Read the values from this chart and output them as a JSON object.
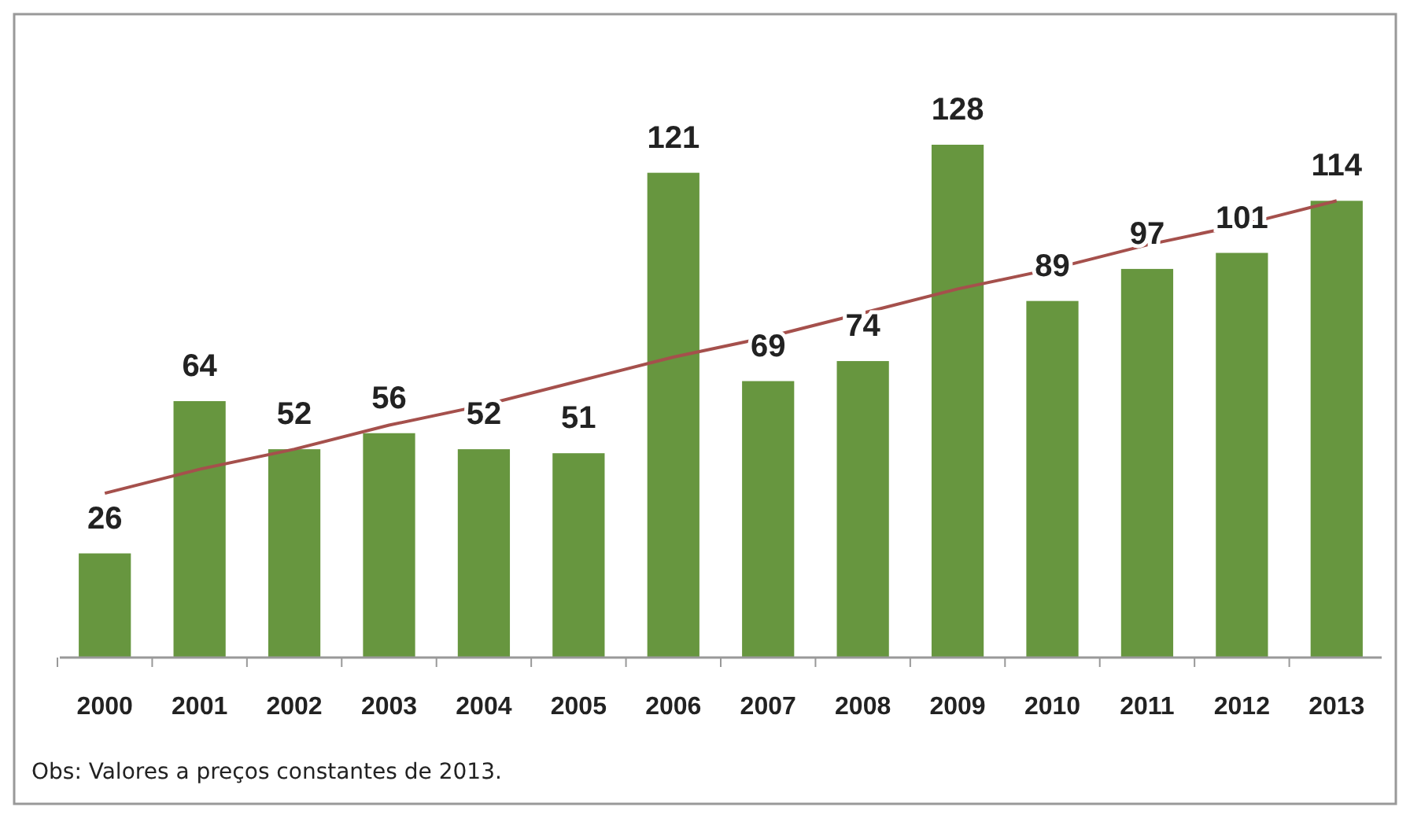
{
  "chart_data": {
    "type": "bar",
    "categories": [
      "2000",
      "2001",
      "2002",
      "2003",
      "2004",
      "2005",
      "2006",
      "2007",
      "2008",
      "2009",
      "2010",
      "2011",
      "2012",
      "2013"
    ],
    "series": [
      {
        "color": "#67963f",
        "values": [
          26,
          64,
          52,
          56,
          52,
          51,
          121,
          69,
          74,
          128,
          89,
          97,
          101,
          114
        ]
      },
      {
        "type": "line",
        "color": "#a5504c",
        "values": [
          41,
          47,
          52,
          58,
          63,
          69,
          75,
          80,
          86,
          92,
          97,
          103,
          108,
          114
        ],
        "value_labels": [
          null,
          null,
          null,
          null,
          null,
          null,
          null,
          null,
          null,
          null,
          null,
          null,
          null,
          null
        ]
      }
    ],
    "data_labels": true,
    "annotations": [
      "Obs: Valores a preços constantes de 2013."
    ]
  }
}
